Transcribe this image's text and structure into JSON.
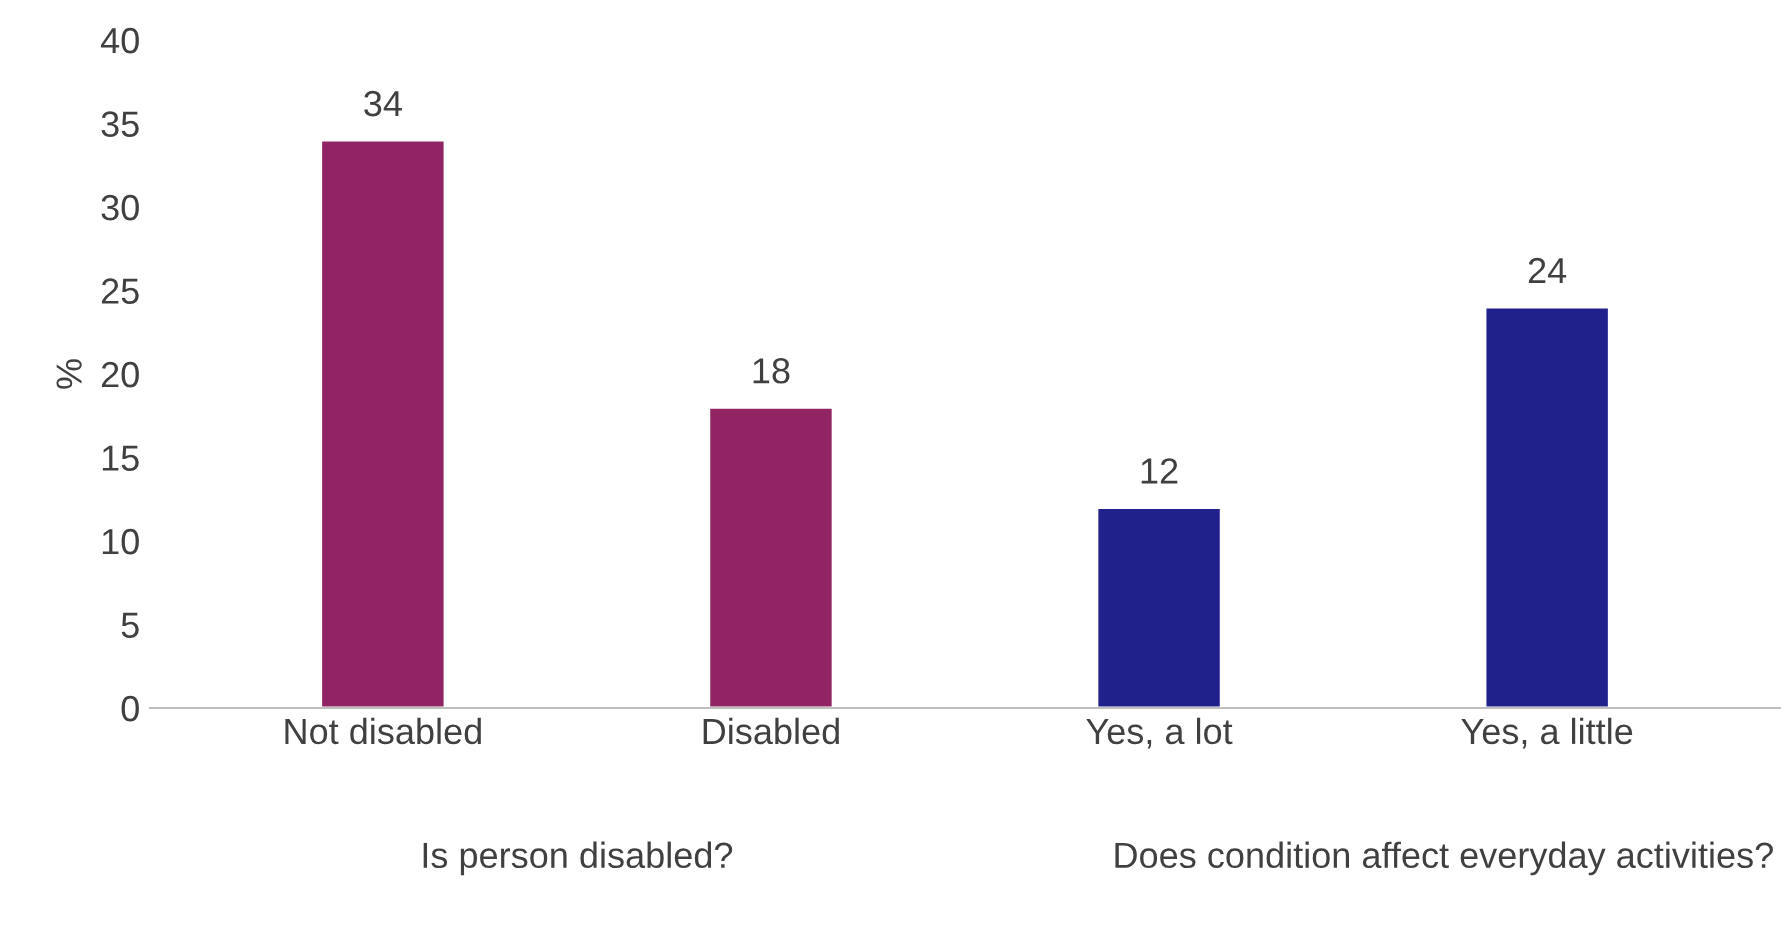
{
  "chart_data": {
    "type": "bar",
    "ylabel": "%",
    "categories": [
      "Not disabled",
      "Disabled",
      "Yes, a lot",
      "Yes, a little"
    ],
    "values": [
      34,
      18,
      12,
      24
    ],
    "colors": [
      "#912462",
      "#912462",
      "#21218c",
      "#21218c"
    ],
    "ylim": [
      0,
      40
    ],
    "yticks": [
      0,
      5,
      10,
      15,
      20,
      25,
      30,
      35,
      40
    ],
    "grid": false,
    "data_labels": true,
    "annotations": [
      "Is person disabled?",
      "Does condition affect everyday activities?"
    ]
  }
}
